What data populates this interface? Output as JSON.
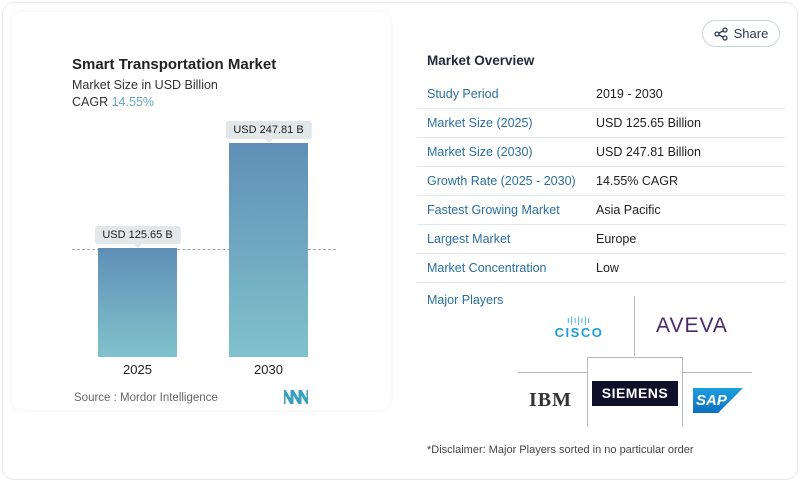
{
  "chart": {
    "title": "Smart Transportation Market",
    "subtitle": "Market Size in USD Billion",
    "cagr_label": "CAGR",
    "cagr_value": "14.55%",
    "source": "Source :  Mordor Intelligence"
  },
  "chart_data": {
    "type": "bar",
    "categories": [
      "2025",
      "2030"
    ],
    "values": [
      125.65,
      247.81
    ],
    "data_labels": [
      "USD 125.65 B",
      "USD 247.81 B"
    ],
    "ylabel": "Market Size in USD Billion",
    "colors": [
      "#5f8fb7",
      "#80c2cb"
    ]
  },
  "share": {
    "label": "Share",
    "icon": "share-icon"
  },
  "overview": {
    "title": "Market Overview",
    "rows": [
      {
        "k": "Study Period",
        "v": "2019 - 2030"
      },
      {
        "k": "Market Size (2025)",
        "v": "USD 125.65 Billion"
      },
      {
        "k": "Market Size (2030)",
        "v": "USD 247.81 Billion"
      },
      {
        "k": "Growth Rate (2025 - 2030)",
        "v": "14.55% CAGR"
      },
      {
        "k": "Fastest Growing Market",
        "v": "Asia Pacific"
      },
      {
        "k": "Largest Market",
        "v": "Europe"
      },
      {
        "k": "Market Concentration",
        "v": "Low"
      }
    ]
  },
  "players": {
    "title": "Major Players",
    "logos": [
      "CISCO",
      "AVEVA",
      "IBM",
      "SIEMENS",
      "SAP"
    ],
    "disclaimer": "*Disclaimer: Major Players sorted in no particular order"
  }
}
